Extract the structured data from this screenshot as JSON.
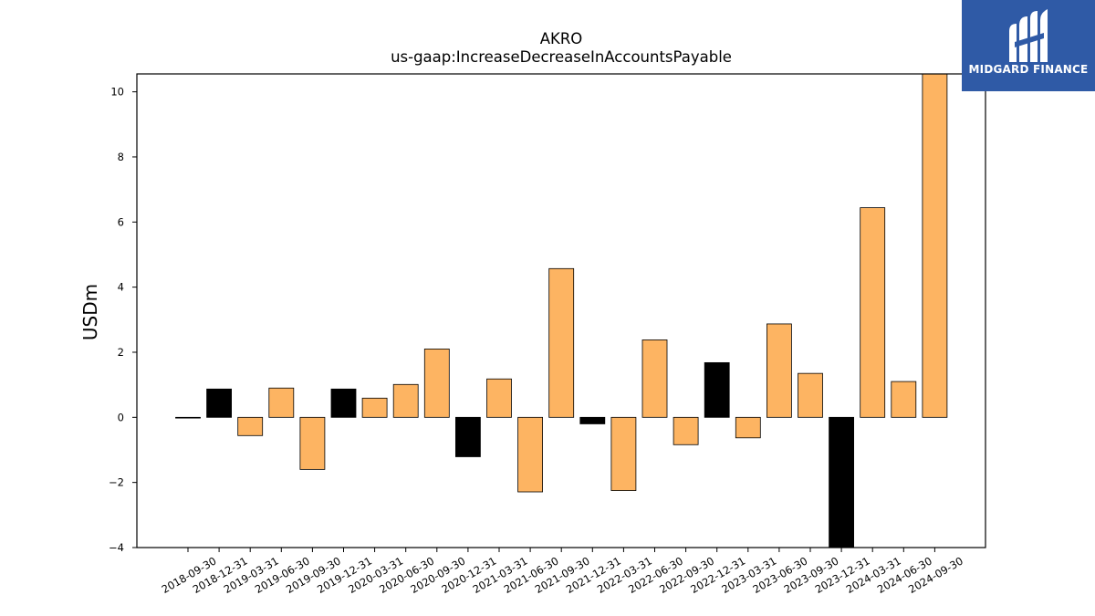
{
  "brand": {
    "name": "MIDGARD FINANCE",
    "logo_color": "#2f5aa6"
  },
  "chart_data": {
    "type": "bar",
    "title": "AKRO",
    "subtitle": "us-gaap:IncreaseDecreaseInAccountsPayable",
    "xlabel": "",
    "ylabel": "USDm",
    "ylim": [
      -4,
      10.55
    ],
    "yticks": [
      -4,
      -2,
      0,
      2,
      4,
      6,
      8,
      10
    ],
    "grid": false,
    "categories": [
      "2018-09-30",
      "2018-12-31",
      "2019-03-31",
      "2019-06-30",
      "2019-09-30",
      "2019-12-31",
      "2020-03-31",
      "2020-06-30",
      "2020-09-30",
      "2020-12-31",
      "2021-03-31",
      "2021-06-30",
      "2021-09-30",
      "2021-12-31",
      "2022-03-31",
      "2022-06-30",
      "2022-09-30",
      "2022-12-31",
      "2023-03-31",
      "2023-06-30",
      "2023-09-30",
      "2023-12-31",
      "2024-03-31",
      "2024-06-30",
      "2024-09-30"
    ],
    "values": [
      0.0,
      0.87,
      -0.56,
      0.9,
      -1.6,
      0.87,
      0.59,
      1.01,
      2.1,
      -1.21,
      1.18,
      -2.29,
      4.57,
      -0.2,
      -2.25,
      2.38,
      -0.84,
      1.68,
      -0.63,
      2.87,
      1.35,
      -4.0,
      6.44,
      1.1,
      10.55
    ],
    "year_end_quarter": [
      false,
      true,
      false,
      false,
      false,
      true,
      false,
      false,
      false,
      true,
      false,
      false,
      false,
      true,
      false,
      false,
      false,
      true,
      false,
      false,
      false,
      true,
      false,
      false,
      false
    ],
    "colors": {
      "quarter": "#fdb462",
      "year_end": "#000000",
      "edge": "#000000"
    }
  }
}
